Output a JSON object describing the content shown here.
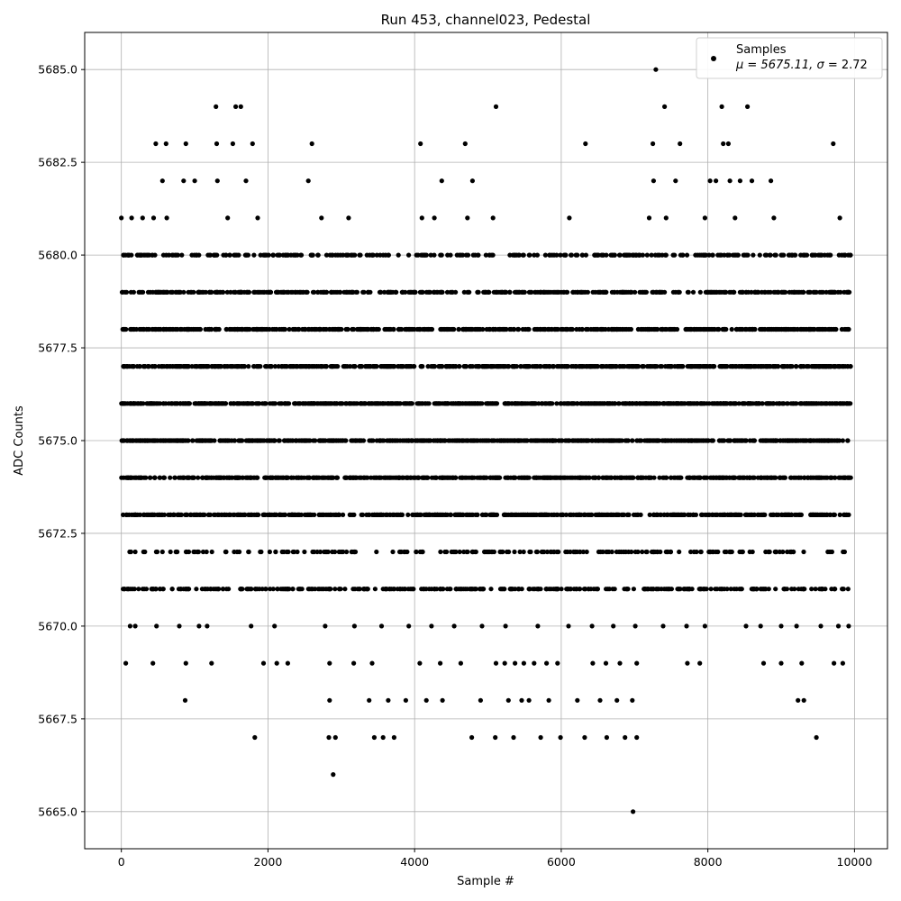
{
  "chart_data": {
    "type": "scatter",
    "title": "Run 453, channel023, Pedestal",
    "xlabel": "Sample #",
    "ylabel": "ADC Counts",
    "xlim": [
      -500,
      10450
    ],
    "ylim": [
      5664.0,
      5686.0
    ],
    "xticks": [
      0,
      2000,
      4000,
      6000,
      8000,
      10000
    ],
    "xtick_labels": [
      "0",
      "2000",
      "4000",
      "6000",
      "8000",
      "10000"
    ],
    "yticks": [
      5665.0,
      5667.5,
      5670.0,
      5672.5,
      5675.0,
      5677.5,
      5680.0,
      5682.5,
      5685.0
    ],
    "ytick_labels": [
      "5665.0",
      "5667.5",
      "5670.0",
      "5672.5",
      "5675.0",
      "5677.5",
      "5680.0",
      "5682.5",
      "5685.0"
    ],
    "grid": true,
    "legend": {
      "placement": "top-right",
      "series_name": "Samples",
      "stats_prefix": "μ = 5675.11, ",
      "stats_sigma": "σ",
      "stats_suffix": " = 2.72"
    },
    "series": [
      {
        "name": "Samples",
        "color": "#000000",
        "points": [
          [
            0,
            5681
          ],
          [
            140,
            5681
          ],
          [
            290,
            5681
          ],
          [
            440,
            5681
          ],
          [
            470,
            5683
          ],
          [
            560,
            5682
          ],
          [
            610,
            5683
          ],
          [
            620,
            5681
          ],
          [
            850,
            5682
          ],
          [
            880,
            5683
          ],
          [
            1000,
            5682
          ],
          [
            1290,
            5684
          ],
          [
            1300,
            5683
          ],
          [
            1310,
            5682
          ],
          [
            1450,
            5681
          ],
          [
            1520,
            5683
          ],
          [
            1560,
            5684
          ],
          [
            1630,
            5684
          ],
          [
            1700,
            5682
          ],
          [
            1790,
            5683
          ],
          [
            1860,
            5681
          ],
          [
            2550,
            5682
          ],
          [
            2600,
            5683
          ],
          [
            2730,
            5681
          ],
          [
            3100,
            5681
          ],
          [
            4080,
            5683
          ],
          [
            4100,
            5681
          ],
          [
            4270,
            5681
          ],
          [
            4370,
            5682
          ],
          [
            4690,
            5683
          ],
          [
            4720,
            5681
          ],
          [
            4790,
            5682
          ],
          [
            5070,
            5681
          ],
          [
            5110,
            5684
          ],
          [
            6330,
            5683
          ],
          [
            6110,
            5681
          ],
          [
            7200,
            5681
          ],
          [
            7250,
            5683
          ],
          [
            7260,
            5682
          ],
          [
            7290,
            5685
          ],
          [
            7410,
            5684
          ],
          [
            7430,
            5681
          ],
          [
            7560,
            5682
          ],
          [
            7620,
            5683
          ],
          [
            7960,
            5681
          ],
          [
            8030,
            5682
          ],
          [
            8110,
            5682
          ],
          [
            8190,
            5684
          ],
          [
            8210,
            5683
          ],
          [
            8280,
            5683
          ],
          [
            8300,
            5682
          ],
          [
            8370,
            5681
          ],
          [
            8440,
            5682
          ],
          [
            8540,
            5684
          ],
          [
            8600,
            5682
          ],
          [
            8860,
            5682
          ],
          [
            8900,
            5681
          ],
          [
            9710,
            5683
          ],
          [
            9800,
            5681
          ],
          [
            870,
            5668
          ],
          [
            1820,
            5667
          ],
          [
            2840,
            5668
          ],
          [
            2830,
            5667
          ],
          [
            2920,
            5667
          ],
          [
            2890,
            5666
          ],
          [
            3380,
            5668
          ],
          [
            3450,
            5667
          ],
          [
            3570,
            5667
          ],
          [
            3640,
            5668
          ],
          [
            3720,
            5667
          ],
          [
            3880,
            5668
          ],
          [
            4160,
            5668
          ],
          [
            4380,
            5668
          ],
          [
            4780,
            5667
          ],
          [
            4900,
            5668
          ],
          [
            5100,
            5667
          ],
          [
            5280,
            5668
          ],
          [
            5350,
            5667
          ],
          [
            5460,
            5668
          ],
          [
            5560,
            5668
          ],
          [
            5720,
            5667
          ],
          [
            5830,
            5668
          ],
          [
            5990,
            5667
          ],
          [
            6220,
            5668
          ],
          [
            6320,
            5667
          ],
          [
            6530,
            5668
          ],
          [
            6620,
            5667
          ],
          [
            6760,
            5668
          ],
          [
            6870,
            5667
          ],
          [
            6970,
            5668
          ],
          [
            7030,
            5667
          ],
          [
            6980,
            5665
          ],
          [
            9230,
            5668
          ],
          [
            9310,
            5668
          ],
          [
            9480,
            5667
          ],
          [
            60,
            5669
          ],
          [
            430,
            5669
          ],
          [
            880,
            5669
          ],
          [
            1230,
            5669
          ],
          [
            1940,
            5669
          ],
          [
            2120,
            5669
          ],
          [
            2270,
            5669
          ],
          [
            2840,
            5669
          ],
          [
            3170,
            5669
          ],
          [
            3420,
            5669
          ],
          [
            4070,
            5669
          ],
          [
            4350,
            5669
          ],
          [
            4630,
            5669
          ],
          [
            5110,
            5669
          ],
          [
            5230,
            5669
          ],
          [
            5370,
            5669
          ],
          [
            5490,
            5669
          ],
          [
            5630,
            5669
          ],
          [
            5800,
            5669
          ],
          [
            5950,
            5669
          ],
          [
            6430,
            5669
          ],
          [
            6610,
            5669
          ],
          [
            6800,
            5669
          ],
          [
            7030,
            5669
          ],
          [
            7720,
            5669
          ],
          [
            7890,
            5669
          ],
          [
            8760,
            5669
          ],
          [
            9000,
            5669
          ],
          [
            9280,
            5669
          ],
          [
            9720,
            5669
          ],
          [
            9840,
            5669
          ],
          [
            120,
            5670
          ],
          [
            190,
            5670
          ],
          [
            480,
            5670
          ],
          [
            790,
            5670
          ],
          [
            1060,
            5670
          ],
          [
            1170,
            5670
          ],
          [
            1770,
            5670
          ],
          [
            2090,
            5670
          ],
          [
            2780,
            5670
          ],
          [
            3180,
            5670
          ],
          [
            3550,
            5670
          ],
          [
            3920,
            5670
          ],
          [
            4230,
            5670
          ],
          [
            4540,
            5670
          ],
          [
            4920,
            5670
          ],
          [
            5240,
            5670
          ],
          [
            5680,
            5670
          ],
          [
            6100,
            5670
          ],
          [
            6420,
            5670
          ],
          [
            6710,
            5670
          ],
          [
            7010,
            5670
          ],
          [
            7390,
            5670
          ],
          [
            7710,
            5670
          ],
          [
            7960,
            5670
          ],
          [
            8520,
            5670
          ],
          [
            8720,
            5670
          ],
          [
            9000,
            5670
          ],
          [
            9210,
            5670
          ],
          [
            9540,
            5670
          ],
          [
            9780,
            5670
          ],
          [
            9920,
            5670
          ]
        ],
        "dense_bands": [
          {
            "y": 5672,
            "count": 220
          },
          {
            "y": 5671,
            "count": 360
          },
          {
            "y": 5673,
            "count": 600
          },
          {
            "y": 5674,
            "count": 620
          },
          {
            "y": 5675,
            "count": 760
          },
          {
            "y": 5676,
            "count": 760
          },
          {
            "y": 5677,
            "count": 700
          },
          {
            "y": 5678,
            "count": 580
          },
          {
            "y": 5679,
            "count": 480
          },
          {
            "y": 5680,
            "count": 300
          }
        ]
      }
    ]
  }
}
